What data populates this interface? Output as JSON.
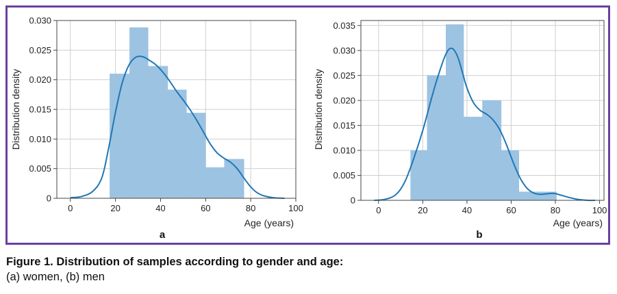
{
  "chart_data": [
    {
      "type": "bar",
      "panel_label": "a",
      "xlabel": "Age (years)",
      "ylabel": "Distribution density",
      "xlim": [
        -6,
        100
      ],
      "ylim": [
        0,
        0.03
      ],
      "xticks": [
        0,
        20,
        40,
        60,
        80,
        100
      ],
      "yticks": [
        0,
        0.005,
        0.01,
        0.015,
        0.02,
        0.025,
        0.03
      ],
      "ytick_labels": [
        "0",
        "0.005",
        "0.010",
        "0.015",
        "0.020",
        "0.025",
        "0.030"
      ],
      "grid": true,
      "histogram_bins": [
        {
          "x0": 17.5,
          "x1": 26.3,
          "density": 0.021
        },
        {
          "x0": 26.3,
          "x1": 34.5,
          "density": 0.0288
        },
        {
          "x0": 34.5,
          "x1": 43.2,
          "density": 0.0223
        },
        {
          "x0": 43.2,
          "x1": 51.5,
          "density": 0.0183
        },
        {
          "x0": 51.5,
          "x1": 60.0,
          "density": 0.0144
        },
        {
          "x0": 60.0,
          "x1": 68.3,
          "density": 0.0052
        },
        {
          "x0": 68.3,
          "x1": 77.0,
          "density": 0.0066
        }
      ],
      "density_curve": {
        "x": [
          0,
          5,
          10,
          14,
          17,
          20,
          23,
          26,
          29,
          32,
          35,
          38,
          41,
          44,
          47,
          50,
          53,
          56,
          59,
          62,
          65,
          68,
          71,
          74,
          77,
          80,
          83,
          86,
          90,
          95
        ],
        "y": [
          0.0001,
          0.0003,
          0.0012,
          0.0035,
          0.0085,
          0.0145,
          0.0195,
          0.0225,
          0.0238,
          0.0239,
          0.0233,
          0.0225,
          0.0213,
          0.0198,
          0.0181,
          0.0166,
          0.015,
          0.0132,
          0.0112,
          0.0092,
          0.0077,
          0.0068,
          0.0061,
          0.005,
          0.0034,
          0.0019,
          0.0009,
          0.0004,
          0.0001,
          0.0
        ]
      },
      "colors": {
        "bars": "#9dc3e2",
        "curve": "#1f77b4"
      }
    },
    {
      "type": "bar",
      "panel_label": "b",
      "xlabel": "Age (years)",
      "ylabel": "Distribution density",
      "xlim": [
        -8,
        102
      ],
      "ylim": [
        0,
        0.036
      ],
      "xticks": [
        0,
        20,
        40,
        60,
        80,
        100
      ],
      "yticks": [
        0,
        0.005,
        0.01,
        0.015,
        0.02,
        0.025,
        0.03,
        0.035
      ],
      "ytick_labels": [
        "0",
        "0.005",
        "0.010",
        "0.015",
        "0.020",
        "0.025",
        "0.030",
        "0.035"
      ],
      "grid": true,
      "histogram_bins": [
        {
          "x0": 14.5,
          "x1": 22.0,
          "density": 0.01
        },
        {
          "x0": 22.0,
          "x1": 30.5,
          "density": 0.025
        },
        {
          "x0": 30.5,
          "x1": 38.5,
          "density": 0.0352
        },
        {
          "x0": 38.5,
          "x1": 47.0,
          "density": 0.0167
        },
        {
          "x0": 47.0,
          "x1": 55.5,
          "density": 0.02
        },
        {
          "x0": 55.5,
          "x1": 63.5,
          "density": 0.01
        },
        {
          "x0": 63.5,
          "x1": 72.0,
          "density": 0.0017
        },
        {
          "x0": 72.0,
          "x1": 80.5,
          "density": 0.0017
        }
      ],
      "density_curve": {
        "x": [
          -2,
          3,
          8,
          12,
          16,
          20,
          24,
          27,
          30,
          32,
          34,
          36,
          38,
          40,
          43,
          46,
          49,
          52,
          55,
          58,
          61,
          64,
          67,
          70,
          73,
          76,
          79,
          82,
          86,
          90,
          95,
          98
        ],
        "y": [
          0.0,
          0.0002,
          0.0012,
          0.0038,
          0.0085,
          0.014,
          0.0205,
          0.025,
          0.0288,
          0.0303,
          0.0302,
          0.0285,
          0.0255,
          0.0225,
          0.0195,
          0.018,
          0.0172,
          0.016,
          0.014,
          0.011,
          0.0075,
          0.0045,
          0.0025,
          0.0015,
          0.0012,
          0.0013,
          0.0014,
          0.0011,
          0.0006,
          0.0002,
          0.0,
          0.0
        ]
      },
      "colors": {
        "bars": "#9dc3e2",
        "curve": "#1f77b4"
      }
    }
  ],
  "caption": {
    "title": "Figure 1. Distribution of samples according to gender and age:",
    "subtitle": "(a) women, (b) men"
  },
  "frame_color": "#6b3fa0"
}
